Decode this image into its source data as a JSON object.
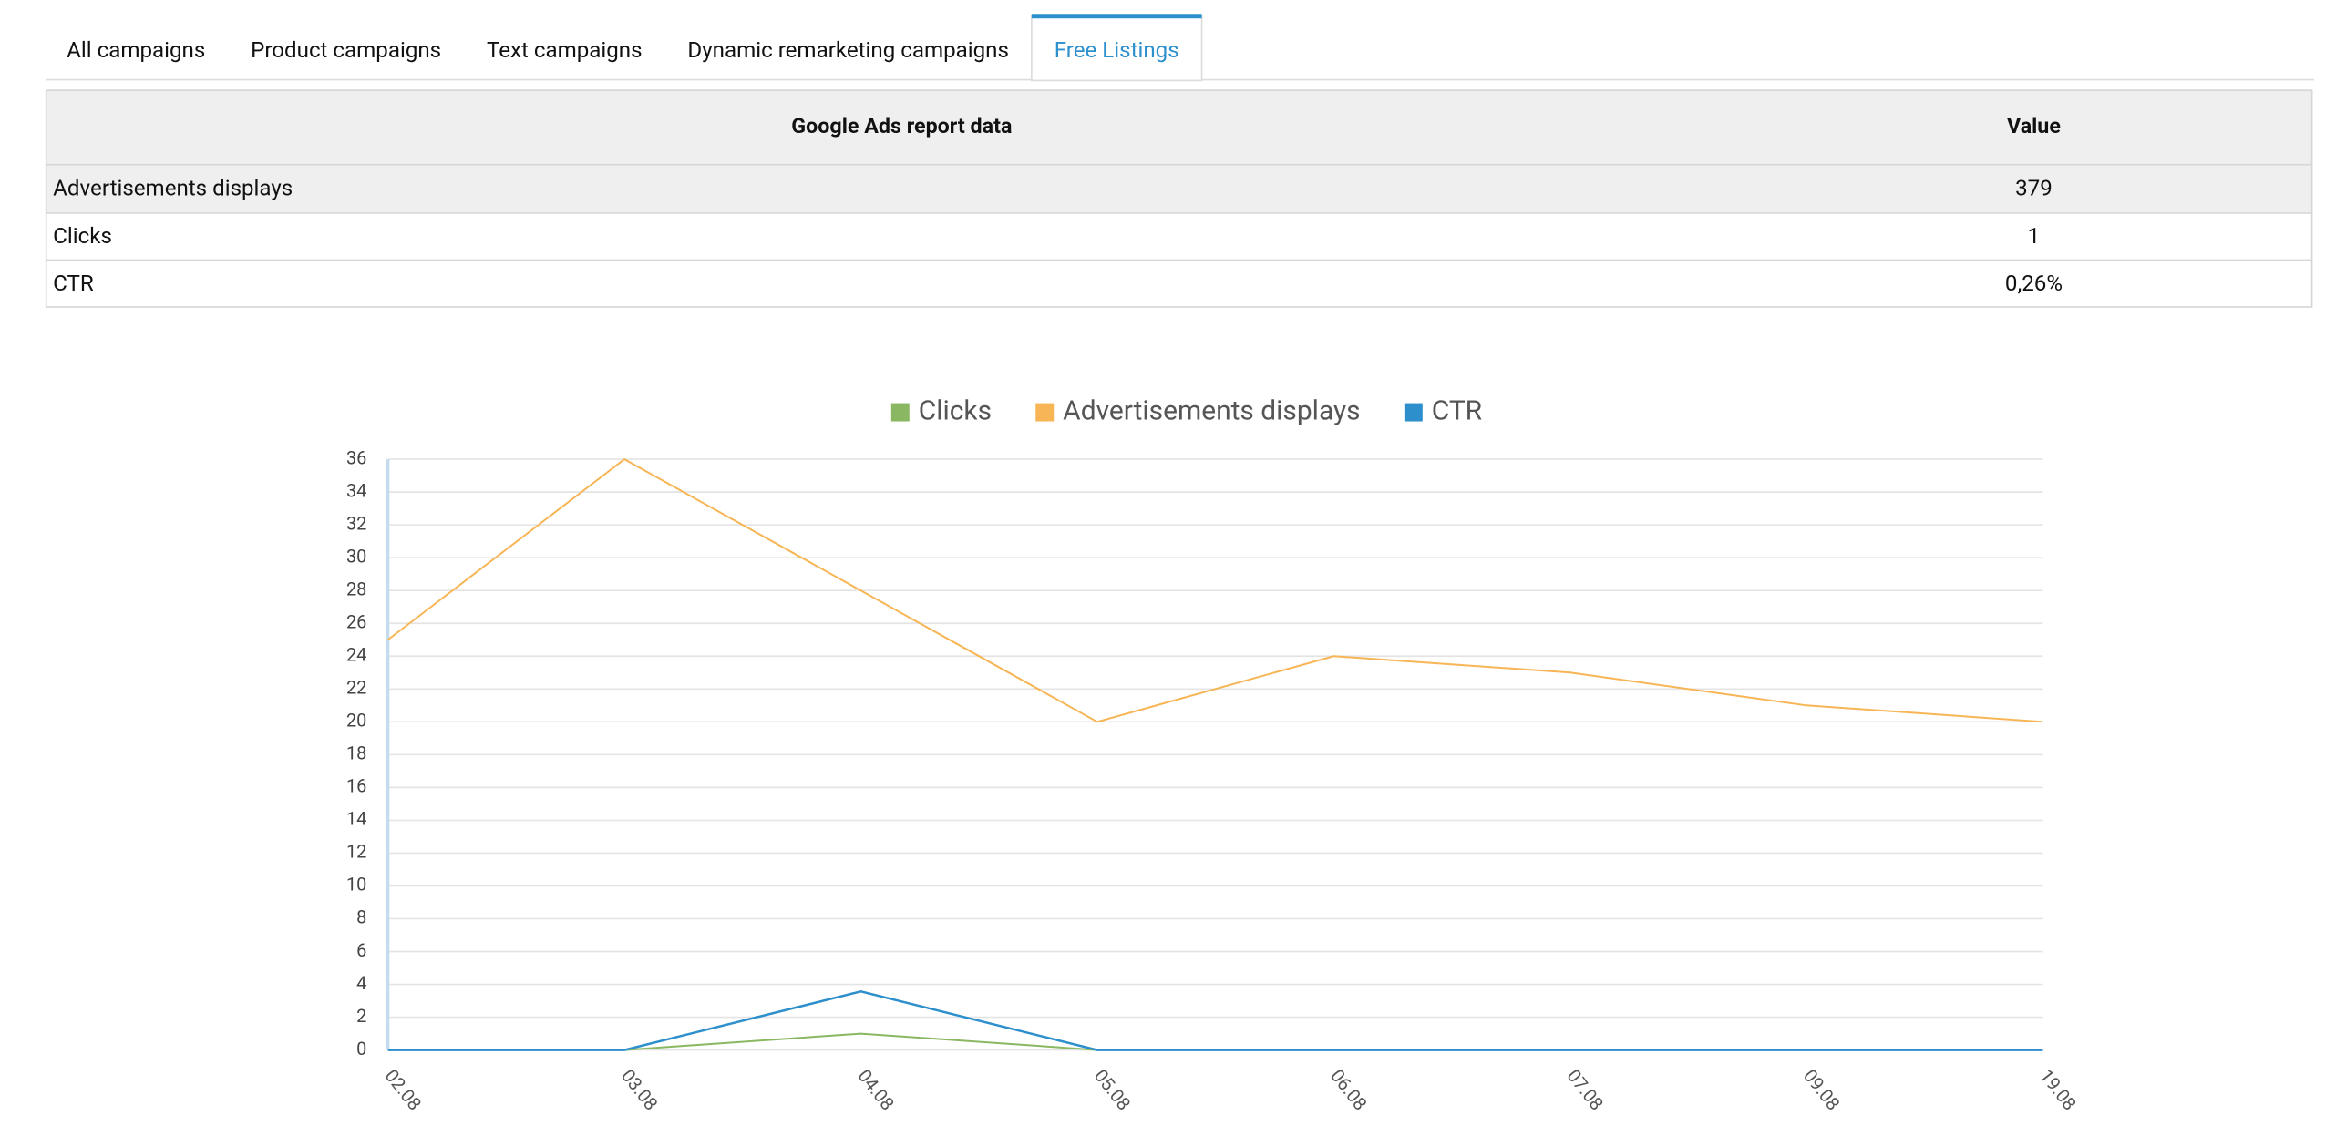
{
  "tabs": [
    "All campaigns",
    "Product campaigns",
    "Text campaigns",
    "Dynamic remarketing campaigns",
    "Free Listings"
  ],
  "active_tab": 4,
  "table": {
    "headers": [
      "Google Ads report data",
      "Value"
    ],
    "rows": [
      [
        "Advertisements displays",
        "379"
      ],
      [
        "Clicks",
        "1"
      ],
      [
        "CTR",
        "0,26%"
      ]
    ]
  },
  "chart_data": {
    "type": "line",
    "categories": [
      "02.08",
      "03.08",
      "04.08",
      "05.08",
      "06.08",
      "07.08",
      "09.08",
      "19.08"
    ],
    "series": [
      {
        "name": "Clicks",
        "color": "#8ab862",
        "values": [
          0,
          0,
          1,
          0,
          0,
          0,
          0,
          0
        ]
      },
      {
        "name": "Advertisements displays",
        "color": "#f7b555",
        "values": [
          25,
          36,
          28,
          20,
          24,
          23,
          21,
          20
        ]
      },
      {
        "name": "CTR",
        "color": "#2d8fcc",
        "values": [
          0,
          0,
          3.57,
          0,
          0,
          0,
          0,
          0
        ]
      }
    ],
    "ylim": [
      0,
      36
    ],
    "yticks": [
      0,
      2,
      4,
      6,
      8,
      10,
      12,
      14,
      16,
      18,
      20,
      22,
      24,
      26,
      28,
      30,
      32,
      34,
      36
    ],
    "grid": true,
    "legend": "top"
  }
}
